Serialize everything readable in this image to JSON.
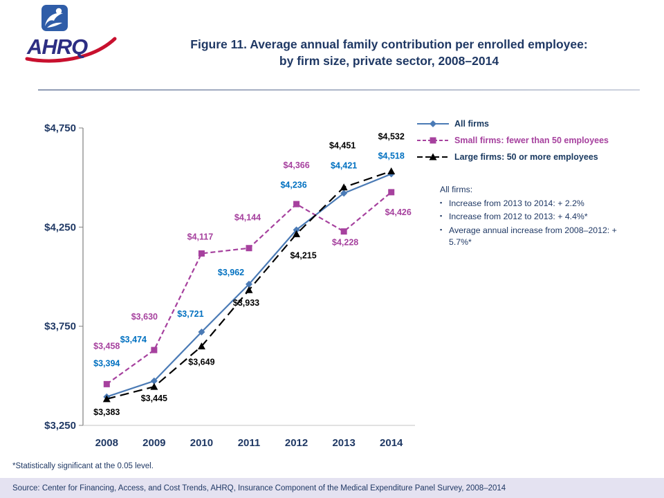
{
  "header": {
    "logo_text": "AHRQ",
    "title_line1": "Figure 11. Average annual family contribution per enrolled employee:",
    "title_line2": "by firm size, private sector, 2008–2014"
  },
  "chart_data": {
    "type": "line",
    "categories": [
      "2008",
      "2009",
      "2010",
      "2011",
      "2012",
      "2013",
      "2014"
    ],
    "series": [
      {
        "name": "All firms",
        "values": [
          3394,
          3474,
          3721,
          3962,
          4236,
          4421,
          4518
        ],
        "color": "#4A7AB5",
        "label_color": "#0070C0",
        "legend_text_color": "#17375E",
        "marker": "diamond",
        "dash": "solid"
      },
      {
        "name": "Small firms: fewer than 50 employees",
        "values": [
          3458,
          3630,
          4117,
          4144,
          4366,
          4228,
          4426
        ],
        "color": "#A6419E",
        "label_color": "#A6419E",
        "legend_text_color": "#A6419E",
        "marker": "square",
        "dash": "dash"
      },
      {
        "name": "Large firms: 50 or more employees",
        "values": [
          3383,
          3445,
          3649,
          3933,
          4215,
          4451,
          4532
        ],
        "color": "#000000",
        "label_color": "#000000",
        "legend_text_color": "#17375E",
        "marker": "triangle",
        "dash": "long-dash"
      }
    ],
    "ylim": [
      3250,
      4750
    ],
    "yticks": [
      3250,
      3750,
      4250,
      4750
    ],
    "ytick_labels": [
      "$3,250",
      "$3,750",
      "$4,250",
      "$4,750"
    ],
    "grid": false,
    "legend_position": "top-right"
  },
  "annotation": {
    "heading": "All firms:",
    "bullets": [
      "Increase from 2013 to 2014: + 2.2%",
      "Increase from 2012 to 2013: + 4.4%*",
      "Average annual increase from 2008–2012: + 5.7%*"
    ]
  },
  "footer": {
    "note": "*Statistically significant at the 0.05 level.",
    "source": "Source: Center for Financing, Access, and Cost Trends, AHRQ, Insurance Component of the Medical Expenditure Panel Survey, 2008–2014"
  }
}
